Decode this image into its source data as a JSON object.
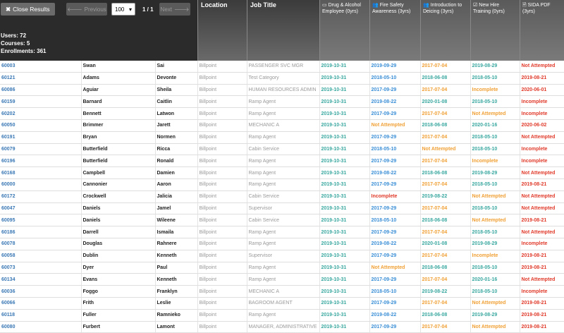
{
  "toolbar": {
    "close_label": "Close Results",
    "prev_label": "Previous",
    "page_size": "100",
    "page_info": "1 / 1",
    "next_label": "Next"
  },
  "stats": {
    "users": "Users: 72",
    "courses": "Courses: 5",
    "enrollments": "Enrollments: 361"
  },
  "columns": {
    "location": "Location",
    "job_title": "Job Title",
    "c1": "Drug & Alcohol Employee (0yrs)",
    "c2": "Fire Safety Awareness (3yrs)",
    "c3": "Introduction to Deicing (3yrs)",
    "c4": "New Hire Training (0yrs)",
    "c5": "SIDA PDF (3yrs)"
  },
  "status_colors": {
    "blue": "#3b8fd6",
    "orange": "#f0a035",
    "teal": "#3aa8a0",
    "red": "#e03a2a"
  },
  "rows": [
    {
      "id": "60003",
      "last": "Swan",
      "first": "Sai",
      "loc": "Billpoint",
      "job": "PASSENGER SVC MGR",
      "c": [
        [
          "2019-10-31",
          "teal"
        ],
        [
          "2019-09-29",
          "blue"
        ],
        [
          "2017-07-04",
          "orange"
        ],
        [
          "2019-08-29",
          "teal"
        ],
        [
          "Not Attempted",
          "red"
        ]
      ]
    },
    {
      "id": "60121",
      "last": "Adams",
      "first": "Devonte",
      "loc": "Billpoint",
      "job": "Test Category",
      "c": [
        [
          "2019-10-31",
          "teal"
        ],
        [
          "2018-05-10",
          "blue"
        ],
        [
          "2018-06-08",
          "teal"
        ],
        [
          "2018-05-10",
          "teal"
        ],
        [
          "2019-08-21",
          "red"
        ]
      ]
    },
    {
      "id": "60086",
      "last": "Aguiar",
      "first": "Sheila",
      "loc": "Billpoint",
      "job": "HUMAN RESOURCES ADMIN",
      "c": [
        [
          "2019-10-31",
          "teal"
        ],
        [
          "2017-09-29",
          "blue"
        ],
        [
          "2017-07-04",
          "orange"
        ],
        [
          "Incomplete",
          "orange"
        ],
        [
          "2020-06-01",
          "red"
        ]
      ]
    },
    {
      "id": "60159",
      "last": "Barnard",
      "first": "Caitlin",
      "loc": "Billpoint",
      "job": "Ramp Agent",
      "c": [
        [
          "2019-10-31",
          "teal"
        ],
        [
          "2019-08-22",
          "blue"
        ],
        [
          "2020-01-08",
          "teal"
        ],
        [
          "2018-05-10",
          "teal"
        ],
        [
          "Incomplete",
          "red"
        ]
      ]
    },
    {
      "id": "60202",
      "last": "Bennett",
      "first": "Latwon",
      "loc": "Billpoint",
      "job": "Ramp Agent",
      "c": [
        [
          "2019-10-31",
          "teal"
        ],
        [
          "2017-09-29",
          "blue"
        ],
        [
          "2017-07-04",
          "orange"
        ],
        [
          "Not Attempted",
          "orange"
        ],
        [
          "Incomplete",
          "red"
        ]
      ]
    },
    {
      "id": "60050",
      "last": "Brimmer",
      "first": "Jarett",
      "loc": "Billpoint",
      "job": "MECHANIC A",
      "c": [
        [
          "2019-10-31",
          "teal"
        ],
        [
          "Not Attempted",
          "orange"
        ],
        [
          "2018-06-08",
          "teal"
        ],
        [
          "2020-01-16",
          "teal"
        ],
        [
          "2020-06-02",
          "red"
        ]
      ]
    },
    {
      "id": "60191",
      "last": "Bryan",
      "first": "Normen",
      "loc": "Billpoint",
      "job": "Ramp Agent",
      "c": [
        [
          "2019-10-31",
          "teal"
        ],
        [
          "2017-09-29",
          "blue"
        ],
        [
          "2017-07-04",
          "orange"
        ],
        [
          "2018-05-10",
          "teal"
        ],
        [
          "Not Attempted",
          "red"
        ]
      ]
    },
    {
      "id": "60079",
      "last": "Butterfield",
      "first": "Ricca",
      "loc": "Billpoint",
      "job": "Cabin Service",
      "c": [
        [
          "2019-10-31",
          "teal"
        ],
        [
          "2018-05-10",
          "blue"
        ],
        [
          "Not Attempted",
          "orange"
        ],
        [
          "2018-05-10",
          "teal"
        ],
        [
          "Incomplete",
          "red"
        ]
      ]
    },
    {
      "id": "60196",
      "last": "Butterfield",
      "first": "Ronald",
      "loc": "Billpoint",
      "job": "Ramp Agent",
      "c": [
        [
          "2019-10-31",
          "teal"
        ],
        [
          "2017-09-29",
          "blue"
        ],
        [
          "2017-07-04",
          "orange"
        ],
        [
          "Incomplete",
          "orange"
        ],
        [
          "Incomplete",
          "red"
        ]
      ]
    },
    {
      "id": "60168",
      "last": "Campbell",
      "first": "Damien",
      "loc": "Billpoint",
      "job": "Ramp Agent",
      "c": [
        [
          "2019-10-31",
          "teal"
        ],
        [
          "2019-08-22",
          "blue"
        ],
        [
          "2018-06-08",
          "teal"
        ],
        [
          "2019-08-29",
          "teal"
        ],
        [
          "Not Attempted",
          "red"
        ]
      ]
    },
    {
      "id": "60000",
      "last": "Cannonier",
      "first": "Aaron",
      "loc": "Billpoint",
      "job": "Ramp Agent",
      "c": [
        [
          "2019-10-31",
          "teal"
        ],
        [
          "2017-09-29",
          "blue"
        ],
        [
          "2017-07-04",
          "orange"
        ],
        [
          "2018-05-10",
          "teal"
        ],
        [
          "2019-08-21",
          "red"
        ]
      ]
    },
    {
      "id": "60172",
      "last": "Crockwell",
      "first": "Jalicia",
      "loc": "Billpoint",
      "job": "Cabin Service",
      "c": [
        [
          "2019-10-31",
          "teal"
        ],
        [
          "Incomplete",
          "red"
        ],
        [
          "2019-08-22",
          "teal"
        ],
        [
          "Not Attempted",
          "orange"
        ],
        [
          "Not Attempted",
          "red"
        ]
      ]
    },
    {
      "id": "60047",
      "last": "Daniels",
      "first": "Jamel",
      "loc": "Billpoint",
      "job": "Supervisor",
      "c": [
        [
          "2019-10-31",
          "teal"
        ],
        [
          "2017-09-29",
          "blue"
        ],
        [
          "2017-07-04",
          "orange"
        ],
        [
          "2018-05-10",
          "teal"
        ],
        [
          "Not Attempted",
          "red"
        ]
      ]
    },
    {
      "id": "60095",
      "last": "Daniels",
      "first": "Wileene",
      "loc": "Billpoint",
      "job": "Cabin Service",
      "c": [
        [
          "2019-10-31",
          "teal"
        ],
        [
          "2018-05-10",
          "blue"
        ],
        [
          "2018-06-08",
          "teal"
        ],
        [
          "Not Attempted",
          "orange"
        ],
        [
          "2019-08-21",
          "red"
        ]
      ]
    },
    {
      "id": "60186",
      "last": "Darrell",
      "first": "Ismaila",
      "loc": "Billpoint",
      "job": "Ramp Agent",
      "c": [
        [
          "2019-10-31",
          "teal"
        ],
        [
          "2017-09-29",
          "blue"
        ],
        [
          "2017-07-04",
          "orange"
        ],
        [
          "2018-05-10",
          "teal"
        ],
        [
          "Not Attempted",
          "red"
        ]
      ]
    },
    {
      "id": "60078",
      "last": "Douglas",
      "first": "Rahnere",
      "loc": "Billpoint",
      "job": "Ramp Agent",
      "c": [
        [
          "2019-10-31",
          "teal"
        ],
        [
          "2019-08-22",
          "blue"
        ],
        [
          "2020-01-08",
          "teal"
        ],
        [
          "2019-08-29",
          "teal"
        ],
        [
          "Incomplete",
          "red"
        ]
      ]
    },
    {
      "id": "60058",
      "last": "Dublin",
      "first": "Kenneth",
      "loc": "Billpoint",
      "job": "Supervisor",
      "c": [
        [
          "2019-10-31",
          "teal"
        ],
        [
          "2017-09-29",
          "blue"
        ],
        [
          "2017-07-04",
          "orange"
        ],
        [
          "Incomplete",
          "orange"
        ],
        [
          "2019-08-21",
          "red"
        ]
      ]
    },
    {
      "id": "60073",
      "last": "Dyer",
      "first": "Paul",
      "loc": "Billpoint",
      "job": "Ramp Agent",
      "c": [
        [
          "2019-10-31",
          "teal"
        ],
        [
          "Not Attempted",
          "orange"
        ],
        [
          "2018-06-08",
          "teal"
        ],
        [
          "2018-05-10",
          "teal"
        ],
        [
          "2019-08-21",
          "red"
        ]
      ]
    },
    {
      "id": "60134",
      "last": "Evans",
      "first": "Kenneth",
      "loc": "Billpoint",
      "job": "Ramp Agent",
      "c": [
        [
          "2019-10-31",
          "teal"
        ],
        [
          "2017-09-29",
          "blue"
        ],
        [
          "2017-07-04",
          "orange"
        ],
        [
          "2020-01-16",
          "teal"
        ],
        [
          "Not Attempted",
          "red"
        ]
      ]
    },
    {
      "id": "60036",
      "last": "Foggo",
      "first": "Franklyn",
      "loc": "Billpoint",
      "job": "MECHANIC A",
      "c": [
        [
          "2019-10-31",
          "teal"
        ],
        [
          "2018-05-10",
          "blue"
        ],
        [
          "2019-08-22",
          "teal"
        ],
        [
          "2018-05-10",
          "teal"
        ],
        [
          "Incomplete",
          "red"
        ]
      ]
    },
    {
      "id": "60066",
      "last": "Frith",
      "first": "Leslie",
      "loc": "Billpoint",
      "job": "BAGROOM AGENT",
      "c": [
        [
          "2019-10-31",
          "teal"
        ],
        [
          "2017-09-29",
          "blue"
        ],
        [
          "2017-07-04",
          "orange"
        ],
        [
          "Not Attempted",
          "orange"
        ],
        [
          "2019-08-21",
          "red"
        ]
      ]
    },
    {
      "id": "60118",
      "last": "Fuller",
      "first": "Ramnieko",
      "loc": "Billpoint",
      "job": "Ramp Agent",
      "c": [
        [
          "2019-10-31",
          "teal"
        ],
        [
          "2019-08-22",
          "blue"
        ],
        [
          "2018-06-08",
          "teal"
        ],
        [
          "2019-08-29",
          "teal"
        ],
        [
          "2019-08-21",
          "red"
        ]
      ]
    },
    {
      "id": "60080",
      "last": "Furbert",
      "first": "Lamont",
      "loc": "Billpoint",
      "job": "MANAGER, ADMINISTRATIVE",
      "c": [
        [
          "2019-10-31",
          "teal"
        ],
        [
          "2017-09-29",
          "blue"
        ],
        [
          "2017-07-04",
          "orange"
        ],
        [
          "Not Attempted",
          "orange"
        ],
        [
          "2019-08-21",
          "red"
        ]
      ]
    }
  ]
}
